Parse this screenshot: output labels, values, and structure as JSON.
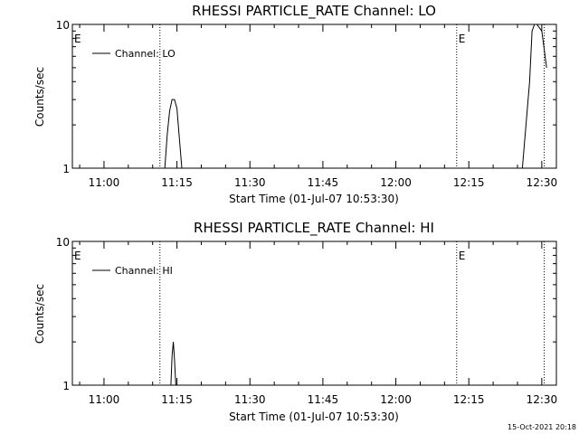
{
  "footer": {
    "timestamp": "15-Oct-2021 20:18"
  },
  "chart_data": [
    {
      "type": "line",
      "title": "RHESSI PARTICLE_RATE Channel: LO",
      "xlabel": "Start Time (01-Jul-07 10:53:30)",
      "ylabel": "Counts/sec",
      "yscale": "log",
      "ylim": [
        1,
        10
      ],
      "y_tick_labels": [
        "1",
        "10"
      ],
      "xlim": [
        "10:53:30",
        "12:33:00"
      ],
      "x_tick_labels": [
        "11:00",
        "11:15",
        "11:30",
        "11:45",
        "12:00",
        "12:15",
        "12:30"
      ],
      "legend": {
        "placement": "top-left",
        "entries": [
          "Channel: LO"
        ]
      },
      "series": [
        {
          "name": "Channel: LO",
          "x": [
            "11:11:00",
            "11:12:30",
            "11:13:00",
            "11:13:30",
            "11:14:00",
            "11:14:30",
            "11:15:00",
            "11:15:30",
            "11:16:00",
            "11:16:30",
            "12:26:00",
            "12:27:30",
            "12:28:00",
            "12:28:30",
            "12:29:00",
            "12:30:00",
            "12:31:00"
          ],
          "y": [
            1,
            1,
            1.7,
            2.5,
            3.0,
            3.0,
            2.6,
            1.6,
            1,
            1,
            1,
            4,
            9,
            10,
            10,
            9,
            5
          ]
        }
      ],
      "annotations": [
        {
          "text": "E",
          "x": "10:53:30"
        },
        {
          "text": "E",
          "x": "12:12:30"
        }
      ],
      "vertical_markers": [
        "11:11:30",
        "12:12:30",
        "12:30:30"
      ]
    },
    {
      "type": "line",
      "title": "RHESSI PARTICLE_RATE Channel: HI",
      "xlabel": "Start Time (01-Jul-07 10:53:30)",
      "ylabel": "Counts/sec",
      "yscale": "log",
      "ylim": [
        1,
        10
      ],
      "y_tick_labels": [
        "1",
        "10"
      ],
      "xlim": [
        "10:53:30",
        "12:33:00"
      ],
      "x_tick_labels": [
        "11:00",
        "11:15",
        "11:30",
        "11:45",
        "12:00",
        "12:15",
        "12:30"
      ],
      "legend": {
        "placement": "top-left",
        "entries": [
          "Channel: HI"
        ]
      },
      "series": [
        {
          "name": "Channel: HI",
          "x": [
            "11:13:45",
            "11:14:00",
            "11:14:15",
            "11:14:30",
            "11:14:45"
          ],
          "y": [
            1,
            1.6,
            2.0,
            1.5,
            1
          ]
        }
      ],
      "annotations": [
        {
          "text": "E",
          "x": "10:53:30"
        },
        {
          "text": "E",
          "x": "12:12:30"
        }
      ],
      "vertical_markers": [
        "11:11:30",
        "12:12:30",
        "12:30:30"
      ]
    }
  ]
}
